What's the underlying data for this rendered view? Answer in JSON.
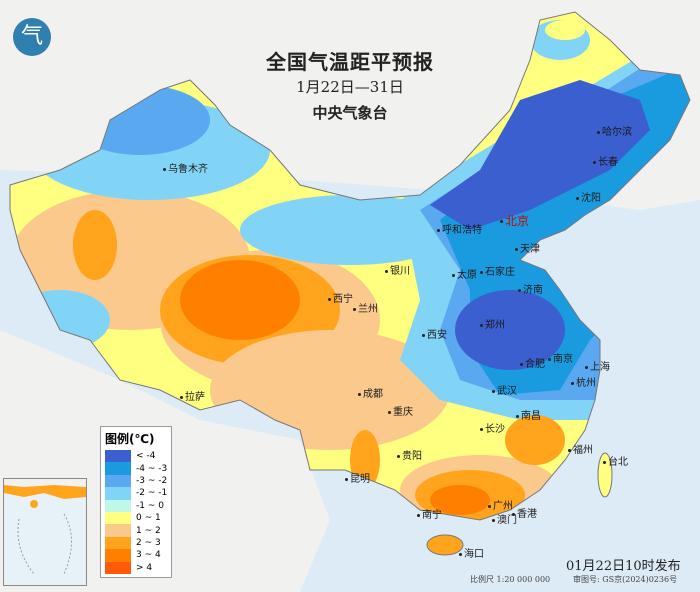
{
  "header": {
    "title": "全国气温距平预报",
    "date_range": "1月22日—31日",
    "organization": "中央气象台"
  },
  "legend": {
    "title": "图例(℃)",
    "items": [
      {
        "label": "< -4",
        "color": "#3b5fcf"
      },
      {
        "label": "-4 ~ -3",
        "color": "#1a9be0"
      },
      {
        "label": "-3 ~ -2",
        "color": "#5aa8f0"
      },
      {
        "label": "-2 ~ -1",
        "color": "#82d4f6"
      },
      {
        "label": "-1 ~ 0",
        "color": "#bff7e8"
      },
      {
        "label": "0 ~ 1",
        "color": "#ffff80"
      },
      {
        "label": "1 ~ 2",
        "color": "#fbc98c"
      },
      {
        "label": "2 ~ 3",
        "color": "#ffa41c"
      },
      {
        "label": "3 ~ 4",
        "color": "#ff8000"
      },
      {
        "label": "> 4",
        "color": "#ff5a0a"
      }
    ]
  },
  "cities": {
    "beijing": "北京",
    "harbin": "哈尔滨",
    "changchun": "长春",
    "shenyang": "沈阳",
    "urumqi": "乌鲁木齐",
    "hohhot": "呼和浩特",
    "tianjin": "天津",
    "yinchuan": "银川",
    "taiyuan": "太原",
    "shijiazhuang": "石家庄",
    "xining": "西宁",
    "lanzhou": "兰州",
    "jinan": "济南",
    "xian": "西安",
    "zhengzhou": "郑州",
    "hefei": "合肥",
    "nanjing": "南京",
    "shanghai": "上海",
    "lhasa": "拉萨",
    "chengdu": "成都",
    "wuhan": "武汉",
    "hangzhou": "杭州",
    "chongqing": "重庆",
    "changsha": "长沙",
    "nanchang": "南昌",
    "guiyang": "贵阳",
    "fuzhou": "福州",
    "taipei": "台北",
    "kunming": "昆明",
    "guangzhou": "广州",
    "nanning": "南宁",
    "hongkong": "香港",
    "macau": "澳门",
    "haikou": "海口"
  },
  "footer": {
    "issued": "01月22日10时发布",
    "scale": "比例尺 1:20 000 000",
    "review_no": "审图号: GS京(2024)0236号"
  },
  "logo": "气"
}
